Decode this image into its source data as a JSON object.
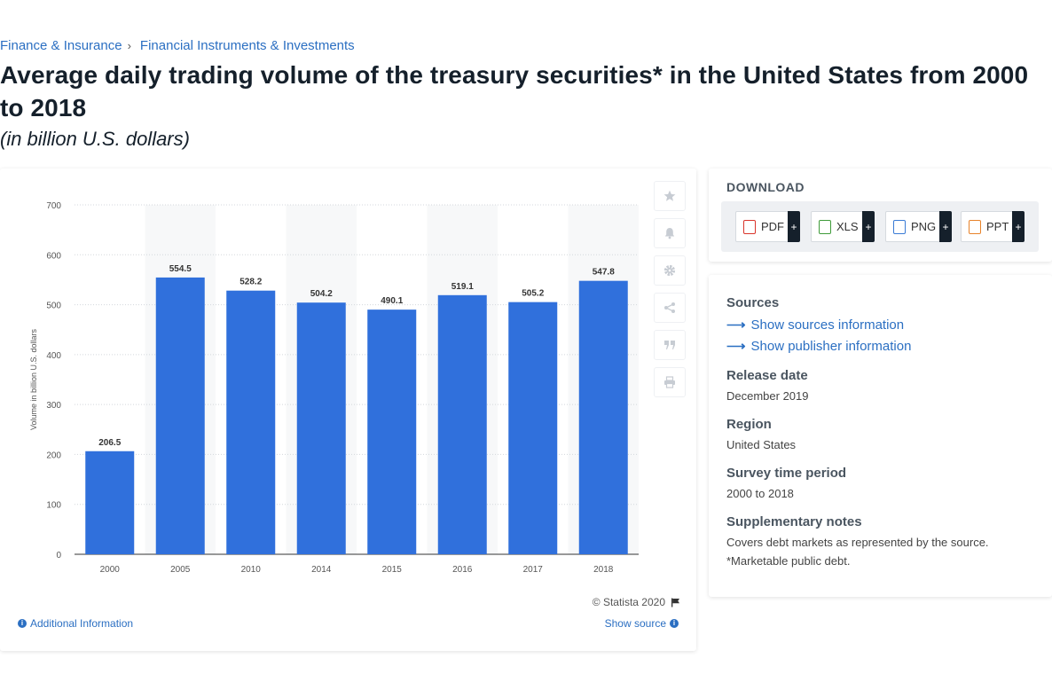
{
  "breadcrumb": {
    "item1": "Finance & Insurance",
    "separator": "›",
    "item2": "Financial Instruments & Investments"
  },
  "title": "Average daily trading volume of the treasury securities* in the United States from 2000 to 2018",
  "subtitle": "(in billion U.S. dollars)",
  "chart_data": {
    "type": "bar",
    "categories": [
      "2000",
      "2005",
      "2010",
      "2014",
      "2015",
      "2016",
      "2017",
      "2018"
    ],
    "values": [
      206.5,
      554.5,
      528.2,
      504.2,
      490.1,
      519.1,
      505.2,
      547.8
    ],
    "ylabel": "Volume in billion U.S. dollars",
    "ylim": [
      0,
      700
    ],
    "yticks": [
      0,
      100,
      200,
      300,
      400,
      500,
      600,
      700
    ],
    "grid": true,
    "bar_color": "#3070dc"
  },
  "chart_footer": {
    "copyright": "© Statista 2020",
    "additional_info": "Additional Information",
    "show_source": "Show source"
  },
  "tools": [
    "star-icon",
    "bell-icon",
    "gear-icon",
    "share-icon",
    "quote-icon",
    "print-icon"
  ],
  "download": {
    "title": "DOWNLOAD",
    "buttons": [
      {
        "label": "PDF",
        "icon": "pdf-file-icon",
        "color": "#d9342b"
      },
      {
        "label": "XLS",
        "icon": "xls-file-icon",
        "color": "#3f9b3a"
      },
      {
        "label": "PNG",
        "icon": "png-file-icon",
        "color": "#3a7bd5"
      },
      {
        "label": "PPT",
        "icon": "ppt-file-icon",
        "color": "#e8832a"
      }
    ],
    "plus": "+"
  },
  "meta": {
    "sources_heading": "Sources",
    "show_sources": "Show sources information",
    "show_publisher": "Show publisher information",
    "release_heading": "Release date",
    "release_value": "December 2019",
    "region_heading": "Region",
    "region_value": "United States",
    "period_heading": "Survey time period",
    "period_value": "2000 to 2018",
    "notes_heading": "Supplementary notes",
    "notes_line1": "Covers debt markets as represented by the source.",
    "notes_line2": "*Marketable public debt."
  }
}
